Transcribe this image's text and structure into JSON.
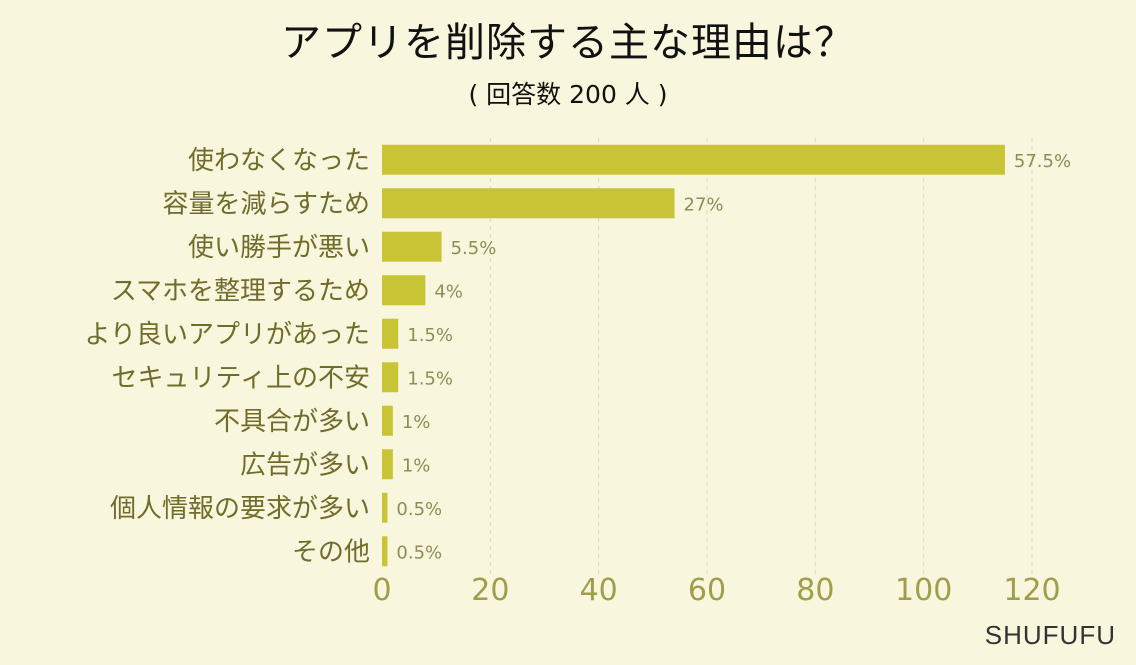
{
  "colors": {
    "bar": "#c8c436",
    "background": "#f8f6dc",
    "category_text": "#6f6d2b",
    "value_text": "#8f8d55",
    "tick_text": "#a09e4a",
    "grid": "#d8d6bc"
  },
  "brand": "SHUFUFU",
  "chart_data": {
    "type": "bar",
    "orientation": "horizontal",
    "title": "アプリを削除する主な理由は？",
    "subtitle": "( 回答数 200 人 )",
    "categories": [
      "使わなくなった",
      "容量を減らすため",
      "使い勝手が悪い",
      "スマホを整理するため",
      "より良いアプリがあった",
      "セキュリティ上の不安",
      "不具合が多い",
      "広告が多い",
      "個人情報の要求が多い",
      "その他"
    ],
    "values": [
      115,
      54,
      11,
      8,
      3,
      3,
      2,
      2,
      1,
      1
    ],
    "value_labels": [
      "57.5%",
      "27%",
      "5.5%",
      "4%",
      "1.5%",
      "1.5%",
      "1%",
      "1%",
      "0.5%",
      "0.5%"
    ],
    "xlim": [
      0,
      120
    ],
    "xticks": [
      0,
      20,
      40,
      60,
      80,
      100,
      120
    ],
    "grid": "vertical-dashed",
    "xlabel": "",
    "ylabel": ""
  }
}
